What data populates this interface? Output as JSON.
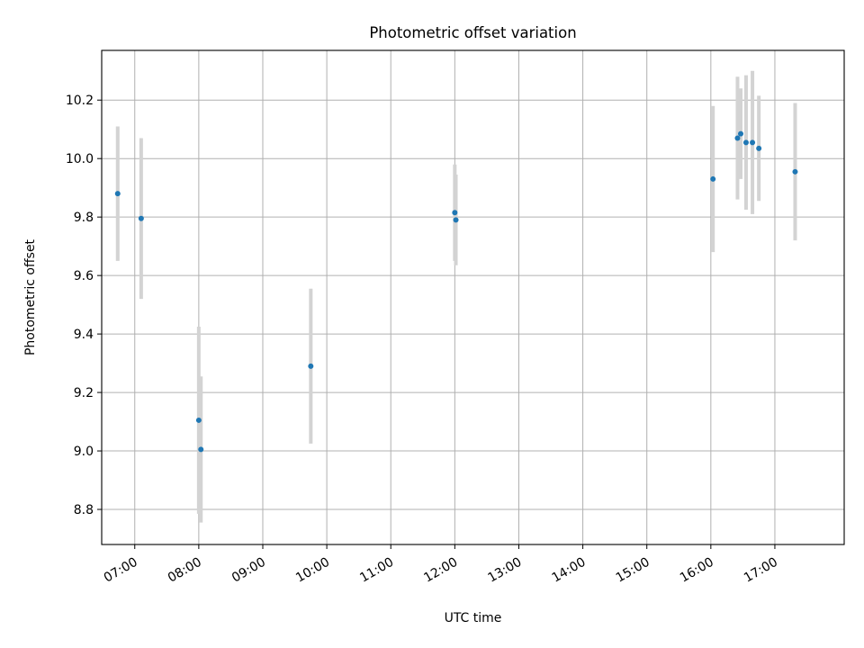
{
  "chart_data": {
    "type": "scatter",
    "title": "Photometric offset variation",
    "xlabel": "UTC time",
    "ylabel": "Photometric offset",
    "xlim": [
      "06:29",
      "18:05"
    ],
    "ylim": [
      8.68,
      10.37
    ],
    "x_ticks": [
      "07:00",
      "08:00",
      "09:00",
      "10:00",
      "11:00",
      "12:00",
      "13:00",
      "14:00",
      "15:00",
      "16:00",
      "17:00"
    ],
    "y_ticks": [
      8.8,
      9.0,
      9.2,
      9.4,
      9.6,
      9.8,
      10.0,
      10.2
    ],
    "grid": true,
    "legend": "none",
    "series": [
      {
        "marker_color": "#1f77b4",
        "errorbar_color": "#d3d3d3",
        "points": [
          {
            "x": "06:44",
            "y": 9.88,
            "err": 0.23
          },
          {
            "x": "07:06",
            "y": 9.795,
            "err": 0.275
          },
          {
            "x": "08:00",
            "y": 9.105,
            "err": 0.32
          },
          {
            "x": "08:02",
            "y": 9.005,
            "err": 0.25
          },
          {
            "x": "09:45",
            "y": 9.29,
            "err": 0.265
          },
          {
            "x": "12:00",
            "y": 9.815,
            "err": 0.165
          },
          {
            "x": "12:01",
            "y": 9.79,
            "err": 0.155
          },
          {
            "x": "16:02",
            "y": 9.93,
            "err": 0.25
          },
          {
            "x": "16:25",
            "y": 10.07,
            "err": 0.21
          },
          {
            "x": "16:28",
            "y": 10.085,
            "err": 0.155
          },
          {
            "x": "16:33",
            "y": 10.055,
            "err": 0.23
          },
          {
            "x": "16:39",
            "y": 10.055,
            "err": 0.245
          },
          {
            "x": "16:45",
            "y": 10.035,
            "err": 0.18
          },
          {
            "x": "17:19",
            "y": 9.955,
            "err": 0.235
          }
        ]
      }
    ]
  }
}
